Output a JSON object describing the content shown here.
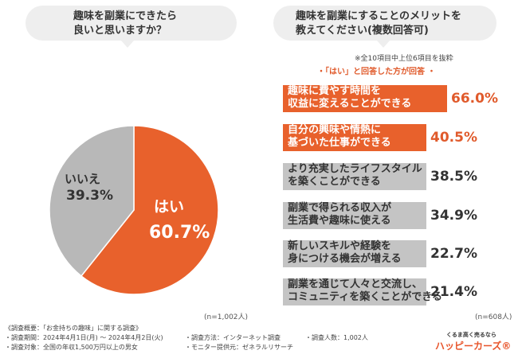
{
  "left_question": {
    "line1": "趣味を副業にできたら",
    "line2": "良いと思いますか？"
  },
  "right_question": {
    "line1": "趣味を副業にすることのメリットを",
    "line2": "教えてください(複数回答可)"
  },
  "colors": {
    "yes": "#e8612c",
    "no": "#b8b8b8",
    "bar_top": "#e8612c",
    "bar_other": "#c4c4c4",
    "accent": "#e05a2b"
  },
  "notes": {
    "n_left": "(n=1,002人)",
    "n_right": "(n=608人)",
    "sub_note": "※全10項目中上位6項目を抜粋",
    "answer_note": "・「はい」と回答した方が回答 ・"
  },
  "chart_data": [
    {
      "type": "pie",
      "title": "趣味を副業にできたら良いと思いますか？",
      "slices": [
        {
          "name": "はい",
          "value": 60.7,
          "label": "60.7%"
        },
        {
          "name": "いいえ",
          "value": 39.3,
          "label": "39.3%"
        }
      ],
      "n": "(n=1,002人)"
    },
    {
      "type": "bar",
      "title": "趣味を副業にすることのメリットを教えてください(複数回答可)",
      "items": [
        {
          "line1": "趣味に費やす時間を",
          "line2": "収益に変えることができる",
          "value": 66.0,
          "label": "66.0%"
        },
        {
          "line1": "自分の興味や情熱に",
          "line2": "基づいた仕事ができる",
          "value": 40.5,
          "label": "40.5%"
        },
        {
          "line1": "より充実したライフスタイル",
          "line2": "を築くことができる",
          "value": 38.5,
          "label": "38.5%"
        },
        {
          "line1": "副業で得られる収入が",
          "line2": "生活費や趣味に使える",
          "value": 34.9,
          "label": "34.9%"
        },
        {
          "line1": "新しいスキルや経験を",
          "line2": "身につける機会が増える",
          "value": 22.7,
          "label": "22.7%"
        },
        {
          "line1": "副業を通じて人々と交流し、",
          "line2": "コミュニティを築くことができる",
          "value": 21.4,
          "label": "21.4%"
        }
      ],
      "n": "(n=608人)"
    }
  ],
  "footer": {
    "survey_title": "《調査概要：「お金持ちの趣味」に関する調査》",
    "period": "・調査期間：2024年4月1日(月) 〜 2024年4月2日(火)",
    "target": "・調査対象：全国の年収1,500万円以上の男女",
    "method": "・調査方法：インターネット調査",
    "provider": "・モニター提供元：ゼネラルリサーチ",
    "count": "・調査人数：1,002人"
  },
  "logo": {
    "tagline": "くるま高く売るなら",
    "name": "ハッピーカーズ®"
  }
}
